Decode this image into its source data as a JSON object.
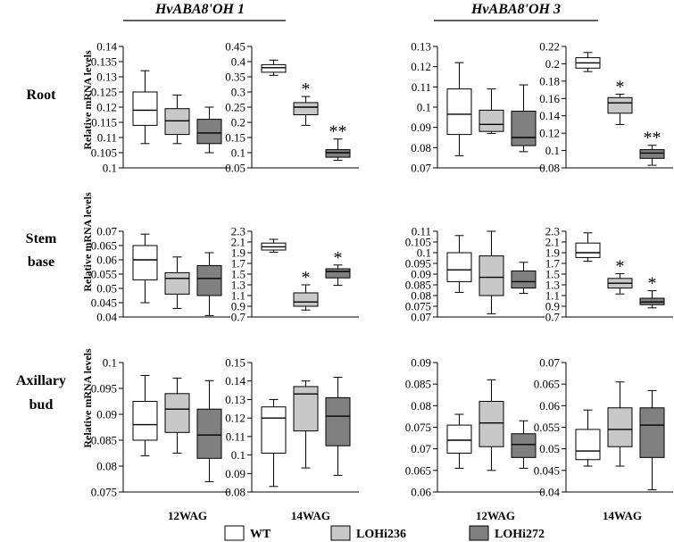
{
  "genes": [
    "HvABA8'OH 1",
    "HvABA8'OH 3"
  ],
  "rows": [
    {
      "lines": [
        "Root"
      ]
    },
    {
      "lines": [
        "Stem",
        "base"
      ]
    },
    {
      "lines": [
        "Axillary",
        "bud"
      ]
    }
  ],
  "ylabel": "Relative mRNA levels",
  "xlabels": [
    "12WAG",
    "14WAG",
    "12WAG",
    "14WAG"
  ],
  "legend": [
    {
      "label": "WT",
      "color": "#ffffff"
    },
    {
      "label": "LOHi236",
      "color": "#c8c8c8"
    },
    {
      "label": "LOHi272",
      "color": "#808080"
    }
  ],
  "chart_data": [
    {
      "type": "box",
      "gene": "HvABA8'OH 1",
      "tissue": "Root",
      "stage": "12WAG",
      "ylim": [
        0.1,
        0.14
      ],
      "ticks": [
        "0.14",
        "0.135",
        "0.13",
        "0.125",
        "0.12",
        "0.115",
        "0.11",
        "0.105",
        "0.1"
      ],
      "series": [
        {
          "name": "WT",
          "min": 0.108,
          "q1": 0.114,
          "median": 0.119,
          "q3": 0.125,
          "max": 0.132,
          "sig": ""
        },
        {
          "name": "LOHi236",
          "min": 0.108,
          "q1": 0.111,
          "median": 0.1155,
          "q3": 0.1195,
          "max": 0.124,
          "sig": ""
        },
        {
          "name": "LOHi272",
          "min": 0.105,
          "q1": 0.108,
          "median": 0.1115,
          "q3": 0.116,
          "max": 0.12,
          "sig": ""
        }
      ]
    },
    {
      "type": "box",
      "gene": "HvABA8'OH 1",
      "tissue": "Root",
      "stage": "14WAG",
      "ylim": [
        0.05,
        0.45
      ],
      "ticks": [
        "0.45",
        "0.4",
        "0.35",
        "0.3",
        "0.25",
        "0.2",
        "0.15",
        "0.1",
        "0.05"
      ],
      "series": [
        {
          "name": "WT",
          "min": 0.355,
          "q1": 0.365,
          "median": 0.38,
          "q3": 0.39,
          "max": 0.405,
          "sig": ""
        },
        {
          "name": "LOHi236",
          "min": 0.19,
          "q1": 0.225,
          "median": 0.25,
          "q3": 0.265,
          "max": 0.285,
          "sig": "*"
        },
        {
          "name": "LOHi272",
          "min": 0.075,
          "q1": 0.085,
          "median": 0.1,
          "q3": 0.11,
          "max": 0.145,
          "sig": "**"
        }
      ]
    },
    {
      "type": "box",
      "gene": "HvABA8'OH 3",
      "tissue": "Root",
      "stage": "12WAG",
      "ylim": [
        0.07,
        0.13
      ],
      "ticks": [
        "0.13",
        "0.12",
        "0.11",
        "0.1",
        "0.09",
        "0.08",
        "0.07"
      ],
      "series": [
        {
          "name": "WT",
          "min": 0.076,
          "q1": 0.0865,
          "median": 0.0965,
          "q3": 0.109,
          "max": 0.122,
          "sig": ""
        },
        {
          "name": "LOHi236",
          "min": 0.087,
          "q1": 0.088,
          "median": 0.0915,
          "q3": 0.0985,
          "max": 0.109,
          "sig": ""
        },
        {
          "name": "LOHi272",
          "min": 0.078,
          "q1": 0.081,
          "median": 0.085,
          "q3": 0.098,
          "max": 0.111,
          "sig": ""
        }
      ]
    },
    {
      "type": "box",
      "gene": "HvABA8'OH 3",
      "tissue": "Root",
      "stage": "14WAG",
      "ylim": [
        0.08,
        0.22
      ],
      "ticks": [
        "0.22",
        "0.2",
        "0.18",
        "0.16",
        "0.14",
        "0.12",
        "0.1",
        "0.08"
      ],
      "series": [
        {
          "name": "WT",
          "min": 0.191,
          "q1": 0.195,
          "median": 0.201,
          "q3": 0.207,
          "max": 0.213,
          "sig": ""
        },
        {
          "name": "LOHi236",
          "min": 0.13,
          "q1": 0.143,
          "median": 0.155,
          "q3": 0.161,
          "max": 0.165,
          "sig": "*"
        },
        {
          "name": "LOHi272",
          "min": 0.083,
          "q1": 0.091,
          "median": 0.097,
          "q3": 0.101,
          "max": 0.106,
          "sig": "**"
        }
      ]
    },
    {
      "type": "box",
      "gene": "HvABA8'OH 1",
      "tissue": "Stem base",
      "stage": "12WAG",
      "ylim": [
        0.04,
        0.07
      ],
      "ticks": [
        "0.07",
        "0.065",
        "0.06",
        "0.055",
        "0.05",
        "0.045",
        "0.04"
      ],
      "series": [
        {
          "name": "WT",
          "min": 0.045,
          "q1": 0.053,
          "median": 0.06,
          "q3": 0.065,
          "max": 0.069,
          "sig": ""
        },
        {
          "name": "LOHi236",
          "min": 0.043,
          "q1": 0.048,
          "median": 0.0535,
          "q3": 0.0555,
          "max": 0.061,
          "sig": ""
        },
        {
          "name": "LOHi272",
          "min": 0.0405,
          "q1": 0.0475,
          "median": 0.0535,
          "q3": 0.058,
          "max": 0.0625,
          "sig": ""
        }
      ]
    },
    {
      "type": "box",
      "gene": "HvABA8'OH 1",
      "tissue": "Stem base",
      "stage": "14WAG",
      "ylim": [
        0.7,
        2.3
      ],
      "ticks": [
        "2.3",
        "2.1",
        "1.9",
        "1.7",
        "1.5",
        "1.3",
        "1.1",
        "0.9",
        "0.7"
      ],
      "series": [
        {
          "name": "WT",
          "min": 1.91,
          "q1": 1.95,
          "median": 2.01,
          "q3": 2.08,
          "max": 2.15,
          "sig": ""
        },
        {
          "name": "LOHi236",
          "min": 0.83,
          "q1": 0.9,
          "median": 0.98,
          "q3": 1.15,
          "max": 1.3,
          "sig": "*"
        },
        {
          "name": "LOHi272",
          "min": 1.29,
          "q1": 1.43,
          "median": 1.55,
          "q3": 1.6,
          "max": 1.67,
          "sig": "*"
        }
      ]
    },
    {
      "type": "box",
      "gene": "HvABA8'OH 3",
      "tissue": "Stem base",
      "stage": "12WAG",
      "ylim": [
        0.07,
        0.11
      ],
      "ticks": [
        "0.11",
        "0.105",
        "0.1",
        "0.095",
        "0.09",
        "0.085",
        "0.08",
        "0.075",
        "0.07"
      ],
      "series": [
        {
          "name": "WT",
          "min": 0.0815,
          "q1": 0.0865,
          "median": 0.092,
          "q3": 0.1,
          "max": 0.108,
          "sig": ""
        },
        {
          "name": "LOHi236",
          "min": 0.0715,
          "q1": 0.08,
          "median": 0.0885,
          "q3": 0.0985,
          "max": 0.11,
          "sig": ""
        },
        {
          "name": "LOHi272",
          "min": 0.081,
          "q1": 0.0835,
          "median": 0.0865,
          "q3": 0.0915,
          "max": 0.0955,
          "sig": ""
        }
      ]
    },
    {
      "type": "box",
      "gene": "HvABA8'OH 3",
      "tissue": "Stem base",
      "stage": "14WAG",
      "ylim": [
        0.7,
        2.3
      ],
      "ticks": [
        "2.3",
        "2.1",
        "1.9",
        "1.7",
        "1.5",
        "1.3",
        "1.1",
        "0.9",
        "0.7"
      ],
      "series": [
        {
          "name": "WT",
          "min": 1.74,
          "q1": 1.81,
          "median": 1.9,
          "q3": 2.08,
          "max": 2.27,
          "sig": ""
        },
        {
          "name": "LOHi236",
          "min": 1.13,
          "q1": 1.24,
          "median": 1.33,
          "q3": 1.42,
          "max": 1.51,
          "sig": "*"
        },
        {
          "name": "LOHi272",
          "min": 0.87,
          "q1": 0.93,
          "median": 0.98,
          "q3": 1.05,
          "max": 1.19,
          "sig": "*"
        }
      ]
    },
    {
      "type": "box",
      "gene": "HvABA8'OH 1",
      "tissue": "Axillary bud",
      "stage": "12WAG",
      "ylim": [
        0.075,
        0.1
      ],
      "ticks": [
        "0.1",
        "0.095",
        "0.09",
        "0.085",
        "0.08",
        "0.075"
      ],
      "series": [
        {
          "name": "WT",
          "min": 0.082,
          "q1": 0.085,
          "median": 0.088,
          "q3": 0.0925,
          "max": 0.0975,
          "sig": ""
        },
        {
          "name": "LOHi236",
          "min": 0.0825,
          "q1": 0.0865,
          "median": 0.091,
          "q3": 0.094,
          "max": 0.097,
          "sig": ""
        },
        {
          "name": "LOHi272",
          "min": 0.077,
          "q1": 0.0815,
          "median": 0.086,
          "q3": 0.091,
          "max": 0.0965,
          "sig": ""
        }
      ]
    },
    {
      "type": "box",
      "gene": "HvABA8'OH 1",
      "tissue": "Axillary bud",
      "stage": "14WAG",
      "ylim": [
        0.08,
        0.15
      ],
      "ticks": [
        "0.15",
        "0.14",
        "0.13",
        "0.12",
        "0.11",
        "0.1",
        "0.09",
        "0.08"
      ],
      "series": [
        {
          "name": "WT",
          "min": 0.083,
          "q1": 0.101,
          "median": 0.12,
          "q3": 0.126,
          "max": 0.13,
          "sig": ""
        },
        {
          "name": "LOHi236",
          "min": 0.093,
          "q1": 0.113,
          "median": 0.133,
          "q3": 0.137,
          "max": 0.14,
          "sig": ""
        },
        {
          "name": "LOHi272",
          "min": 0.089,
          "q1": 0.105,
          "median": 0.121,
          "q3": 0.131,
          "max": 0.142,
          "sig": ""
        }
      ]
    },
    {
      "type": "box",
      "gene": "HvABA8'OH 3",
      "tissue": "Axillary bud",
      "stage": "12WAG",
      "ylim": [
        0.06,
        0.09
      ],
      "ticks": [
        "0.09",
        "0.085",
        "0.08",
        "0.075",
        "0.07",
        "0.065",
        "0.06"
      ],
      "series": [
        {
          "name": "WT",
          "min": 0.0655,
          "q1": 0.069,
          "median": 0.072,
          "q3": 0.0755,
          "max": 0.078,
          "sig": ""
        },
        {
          "name": "LOHi236",
          "min": 0.065,
          "q1": 0.0705,
          "median": 0.076,
          "q3": 0.081,
          "max": 0.086,
          "sig": ""
        },
        {
          "name": "LOHi272",
          "min": 0.0655,
          "q1": 0.068,
          "median": 0.071,
          "q3": 0.0735,
          "max": 0.0765,
          "sig": ""
        }
      ]
    },
    {
      "type": "box",
      "gene": "HvABA8'OH 3",
      "tissue": "Axillary bud",
      "stage": "14WAG",
      "ylim": [
        0.04,
        0.07
      ],
      "ticks": [
        "0.07",
        "0.065",
        "0.06",
        "0.055",
        "0.05",
        "0.045",
        "0.04"
      ],
      "series": [
        {
          "name": "WT",
          "min": 0.046,
          "q1": 0.0475,
          "median": 0.0495,
          "q3": 0.0545,
          "max": 0.059,
          "sig": ""
        },
        {
          "name": "LOHi236",
          "min": 0.046,
          "q1": 0.0505,
          "median": 0.0545,
          "q3": 0.0595,
          "max": 0.0655,
          "sig": ""
        },
        {
          "name": "LOHi272",
          "min": 0.0405,
          "q1": 0.048,
          "median": 0.0555,
          "q3": 0.0595,
          "max": 0.0635,
          "sig": ""
        }
      ]
    }
  ]
}
